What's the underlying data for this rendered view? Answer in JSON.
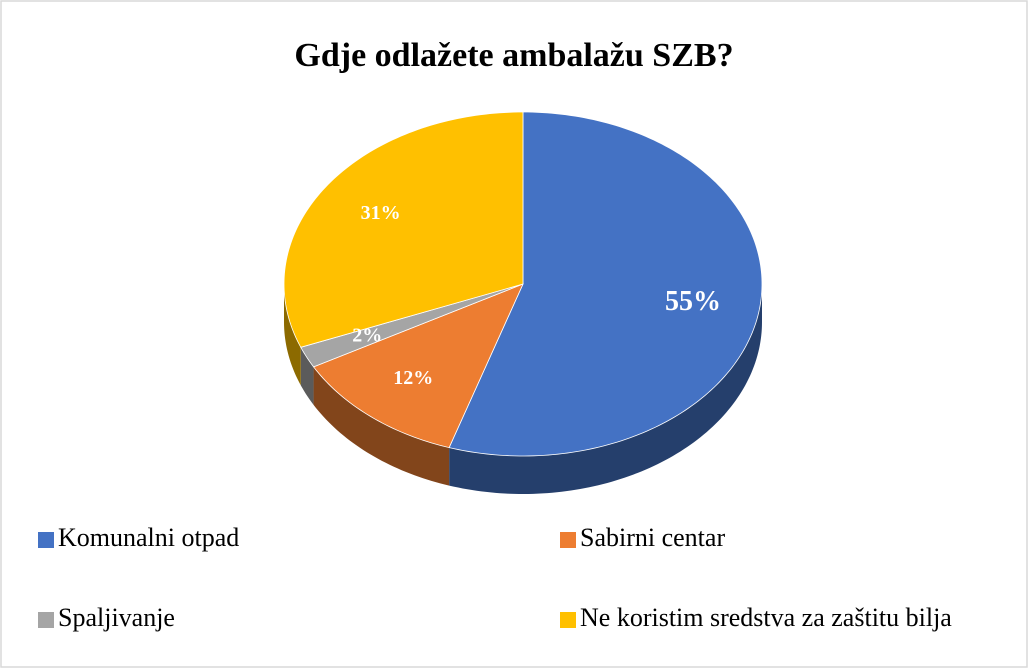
{
  "chart_data": {
    "type": "pie",
    "title": "Gdje odlažete ambalažu SZB?",
    "categories": [
      "Komunalni otpad",
      "Sabirni centar",
      "Spaljivanje",
      "Ne koristim sredstva za zaštitu bilja"
    ],
    "values": [
      55,
      12,
      2,
      31
    ],
    "value_labels": [
      "55%",
      "12%",
      "2%",
      "31%"
    ],
    "colors": [
      "#4472c4",
      "#ed7d31",
      "#a5a5a5",
      "#ffc000"
    ],
    "legend": "bottom"
  }
}
